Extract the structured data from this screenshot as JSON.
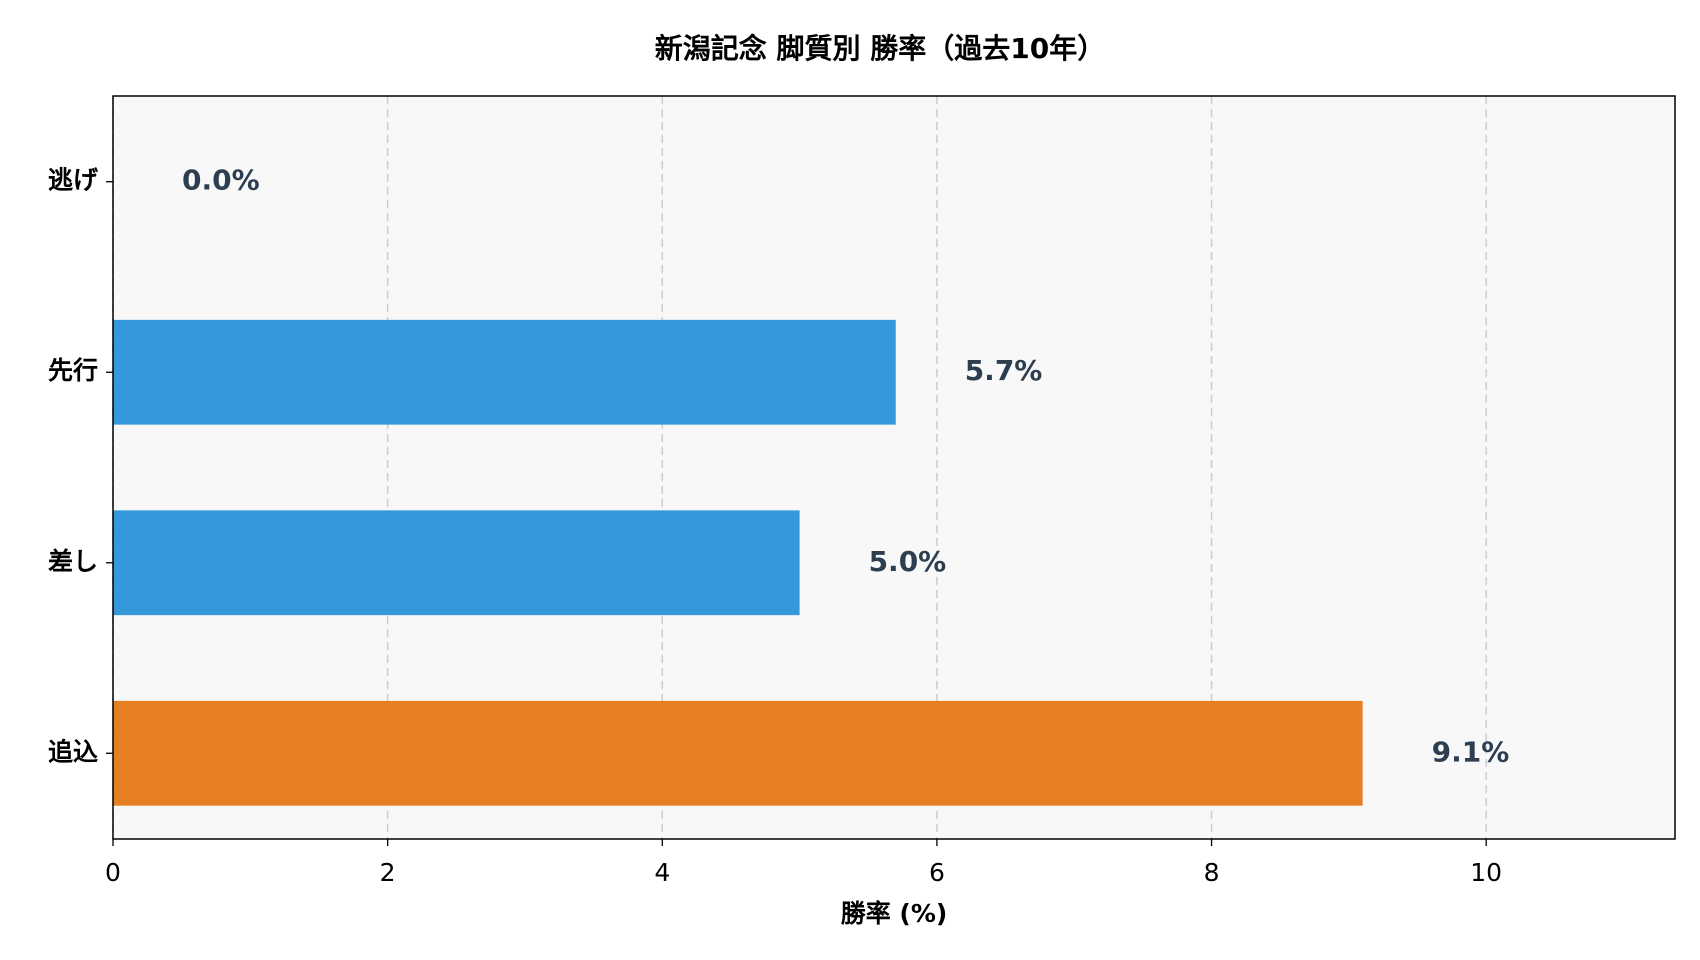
{
  "chart_data": {
    "type": "barh",
    "title": "新潟記念 脚質別 勝率（過去10年）",
    "xlabel": "勝率 (%)",
    "categories": [
      "逃げ",
      "先行",
      "差し",
      "追込"
    ],
    "values": [
      0.0,
      5.7,
      5.0,
      9.1
    ],
    "value_labels": [
      "0.0%",
      "5.7%",
      "5.0%",
      "9.1%"
    ],
    "colors": [
      "#3498db",
      "#3498db",
      "#3498db",
      "#e67e22"
    ],
    "xlim": [
      0,
      11.375
    ],
    "xticks": [
      0,
      2,
      4,
      6,
      8,
      10
    ],
    "grid": true
  }
}
